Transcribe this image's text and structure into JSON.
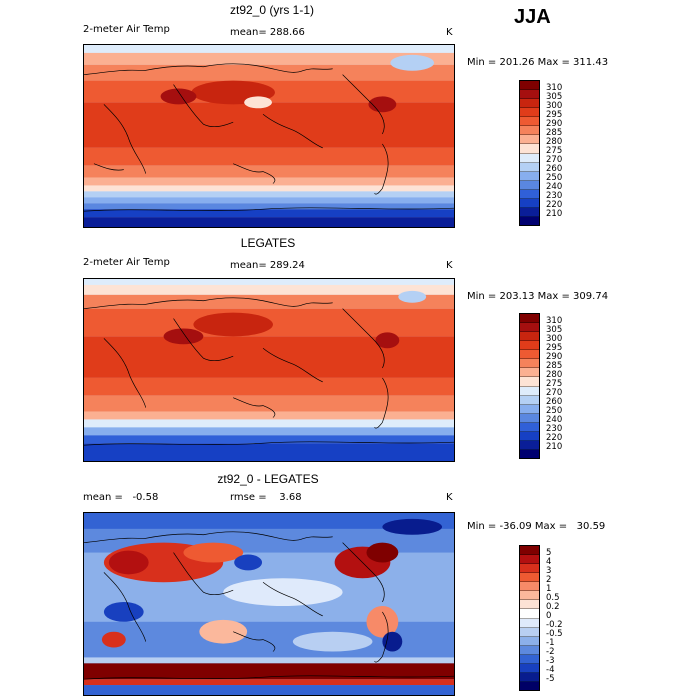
{
  "season": "JJA",
  "panels": [
    {
      "title": "zt92_0 (yrs 1-1)",
      "left_label": "2-meter Air Temp",
      "center_label": "mean= 288.66",
      "units": "K",
      "minmax": "Min = 201.26 Max = 311.43",
      "colorbar_ticks": [
        "310",
        "305",
        "300",
        "295",
        "290",
        "285",
        "280",
        "275",
        "270",
        "260",
        "250",
        "240",
        "230",
        "220",
        "210"
      ]
    },
    {
      "title": "LEGATES",
      "left_label": "2-meter Air Temp",
      "center_label": "mean= 289.24",
      "units": "K",
      "minmax": "Min = 203.13 Max = 309.74",
      "colorbar_ticks": [
        "310",
        "305",
        "300",
        "295",
        "290",
        "285",
        "280",
        "275",
        "270",
        "260",
        "250",
        "240",
        "230",
        "220",
        "210"
      ]
    },
    {
      "title": "zt92_0 - LEGATES",
      "left_label": "mean =   -0.58",
      "center_label": "rmse =    3.68",
      "units": "K",
      "minmax": "Min = -36.09 Max =   30.59",
      "colorbar_ticks": [
        "5",
        "4",
        "3",
        "2",
        "1",
        "0.5",
        "0.2",
        "0",
        "-0.2",
        "-0.5",
        "-1",
        "-2",
        "-3",
        "-4",
        "-5"
      ]
    }
  ],
  "colors": {
    "temp_scale": [
      "#7f0000",
      "#a50f0f",
      "#c8250f",
      "#e03c1a",
      "#ee5a32",
      "#f5825b",
      "#fbb092",
      "#fde3d5",
      "#deecfb",
      "#b4d0f4",
      "#87aeee",
      "#5a87e0",
      "#3060d8",
      "#1640c4",
      "#0a1e98",
      "#000070"
    ],
    "diff_scale": [
      "#7f0000",
      "#b31010",
      "#d8301c",
      "#ee5a32",
      "#f78a68",
      "#fbb89c",
      "#fde2d5",
      "#ffffff",
      "#dfeafb",
      "#b8cff2",
      "#8cb0ea",
      "#5d89de",
      "#3363d3",
      "#1840bf",
      "#081c8e",
      "#000066"
    ]
  }
}
